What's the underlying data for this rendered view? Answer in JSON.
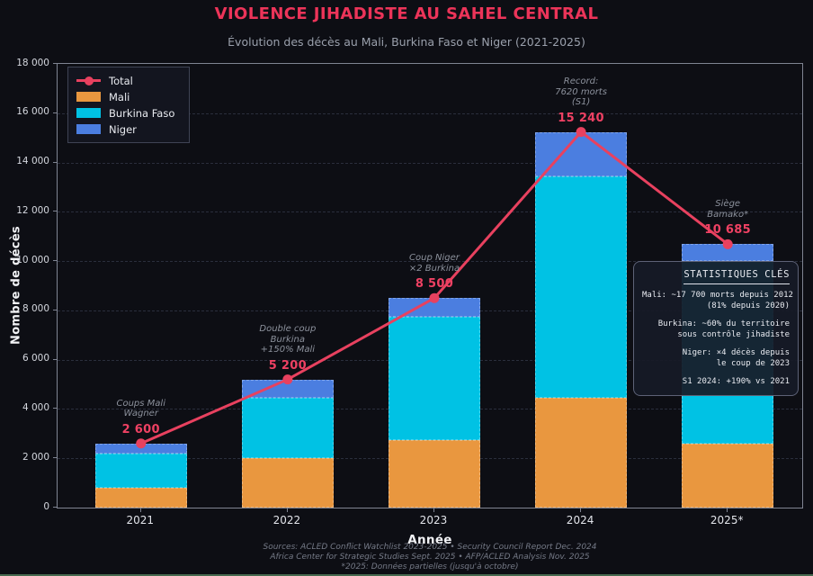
{
  "header": {
    "title": "VIOLENCE JIHADISTE AU SAHEL CENTRAL",
    "subtitle": "Évolution des décès au Mali, Burkina Faso et Niger (2021-2025)"
  },
  "legend": {
    "items": [
      {
        "label": "Total",
        "type": "line",
        "color": "#e8415f"
      },
      {
        "label": "Mali",
        "type": "box",
        "color": "#e9973f"
      },
      {
        "label": "Burkina Faso",
        "type": "box",
        "color": "#00c2e4"
      },
      {
        "label": "Niger",
        "type": "box",
        "color": "#4b7ee0"
      }
    ]
  },
  "chart_data": {
    "type": "bar",
    "subtype": "stacked bars with total line overlay",
    "title": "VIOLENCE JIHADISTE AU SAHEL CENTRAL",
    "subtitle": "Évolution des décès au Mali, Burkina Faso et Niger (2021-2025)",
    "categories": [
      "2021",
      "2022",
      "2023",
      "2024",
      "2025*"
    ],
    "series": [
      {
        "name": "Mali",
        "color": "#e9973f",
        "values": [
          800,
          2000,
          2750,
          4440,
          2600
        ]
      },
      {
        "name": "Burkina Faso",
        "color": "#00c2e4",
        "values": [
          1400,
          2450,
          5000,
          9000,
          7400
        ]
      },
      {
        "name": "Niger",
        "color": "#4b7ee0",
        "values": [
          400,
          750,
          750,
          1800,
          685
        ]
      }
    ],
    "line_series": {
      "name": "Total",
      "color": "#e8415f",
      "values": [
        2600,
        5200,
        8500,
        15240,
        10685
      ]
    },
    "total_labels": [
      "2 600",
      "5 200",
      "8 500",
      "15 240",
      "10 685"
    ],
    "annotations": [
      {
        "lines": [
          "Coups Mali",
          "Wagner"
        ]
      },
      {
        "lines": [
          "Double coup",
          "Burkina",
          "+150% Mali"
        ]
      },
      {
        "lines": [
          "Coup Niger",
          "×2 Burkina"
        ]
      },
      {
        "lines": [
          "Record:",
          "7620 morts",
          "(S1)"
        ]
      },
      {
        "lines": [
          "Siège",
          "Bamako*"
        ]
      }
    ],
    "xlabel": "Année",
    "ylabel": "Nombre de décès",
    "ylim": [
      0,
      18000
    ],
    "yticks": [
      0,
      2000,
      4000,
      6000,
      8000,
      10000,
      12000,
      14000,
      16000,
      18000
    ],
    "ytick_labels": [
      "0",
      "2 000",
      "4 000",
      "6 000",
      "8 000",
      "10 000",
      "12 000",
      "14 000",
      "16 000",
      "18 000"
    ],
    "grid": "horizontal dashed",
    "legend_position": "upper left"
  },
  "stats_box": {
    "title": "STATISTIQUES CLÉS",
    "lines": [
      "Mali: ~17 700 morts depuis 2012",
      "(81% depuis 2020)",
      "",
      "Burkina: ~60% du territoire",
      "sous contrôle jihadiste",
      "",
      "Niger: ×4 décès depuis",
      "le coup de 2023",
      "",
      "S1 2024: +190% vs 2021"
    ]
  },
  "footer": {
    "sources": [
      "Sources: ACLED Conflict Watchlist 2023-2025 • Security Council Report Dec. 2024",
      "Africa Center for Strategic Studies Sept. 2025 • AFP/ACLED Analysis Nov. 2025",
      "*2025: Données partielles (jusqu'à octobre)"
    ]
  },
  "colors": {
    "background": "#0d0e14",
    "title": "#ec3459",
    "subtitle": "#9aa0ac",
    "total_line": "#e8415f",
    "mali": "#e9973f",
    "burkina": "#00c2e4",
    "niger": "#4b7ee0",
    "grid": "#2a2e3c",
    "annotation_text": "#8c919c",
    "bottom_strip": "#46694f"
  }
}
